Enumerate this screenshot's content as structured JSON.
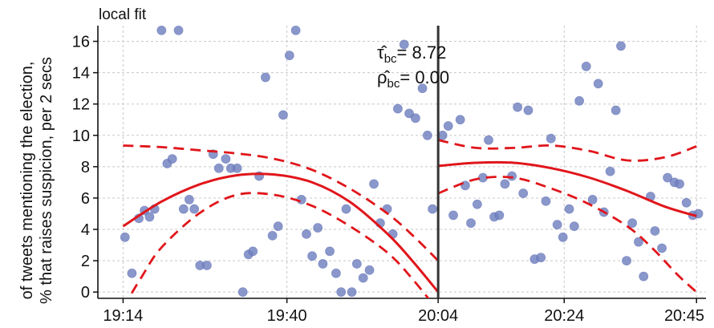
{
  "chart_data": {
    "type": "scatter",
    "title": "local fit",
    "ylabel_line1": "of tweets mentioning the election,",
    "ylabel_line2": "% that raises suspicion, per 2 secs",
    "xlabel": "",
    "x_tick_labels": [
      "19:14",
      "19:40",
      "20:04",
      "20:24",
      "20:45"
    ],
    "x_tick_values": [
      1154,
      1180,
      1204,
      1224,
      1245
    ],
    "y_ticks": [
      0,
      2,
      4,
      6,
      8,
      10,
      12,
      14,
      16
    ],
    "xlim": [
      1150,
      1246.5
    ],
    "ylim": [
      -0.4,
      17.0
    ],
    "grid": true,
    "cutoff": 1204,
    "annotations": {
      "tau_symbol": "τ̂",
      "tau_sub": "bc",
      "tau_value": "= 8.72",
      "rho_symbol": "ρ̂",
      "rho_sub": "bc",
      "rho_value": "= 0.00"
    },
    "colors": {
      "points": "#7080c0",
      "fit": "#e0161b",
      "cutoff": "#333333",
      "grid": "#c8c8c8"
    },
    "series": [
      {
        "kind": "points",
        "x": [
          1154.3,
          1155.4,
          1156.5,
          1157.4,
          1158.2,
          1159.0,
          1160.1,
          1161.0,
          1161.8,
          1162.8,
          1163.6,
          1164.5,
          1165.3,
          1166.2,
          1167.3,
          1168.3,
          1169.2,
          1170.3,
          1171.1,
          1172.1,
          1173.0,
          1173.9,
          1174.6,
          1175.6,
          1176.6,
          1177.7,
          1178.6,
          1179.4,
          1180.4,
          1181.4,
          1182.3,
          1183.1,
          1184.0,
          1184.9,
          1185.7,
          1186.8,
          1187.8,
          1188.6,
          1189.4,
          1190.3,
          1191.1,
          1192.1,
          1193.1,
          1193.8,
          1194.8,
          1195.9,
          1196.8,
          1197.6,
          1198.6,
          1199.4,
          1200.4,
          1201.5,
          1202.3,
          1203.1,
          1204.7,
          1205.6,
          1206.4,
          1207.5,
          1208.3,
          1209.2,
          1210.2,
          1211.1,
          1212.0,
          1212.9,
          1213.7,
          1214.6,
          1215.7,
          1216.6,
          1217.5,
          1218.3,
          1219.3,
          1220.3,
          1221.1,
          1221.9,
          1222.9,
          1223.8,
          1224.8,
          1225.6,
          1226.4,
          1227.5,
          1228.5,
          1229.4,
          1230.3,
          1231.3,
          1232.2,
          1233.0,
          1233.9,
          1234.8,
          1235.8,
          1236.6,
          1237.7,
          1238.4,
          1239.5,
          1240.4,
          1241.5,
          1242.3,
          1243.4,
          1244.4,
          1245.3
        ],
        "y": [
          3.5,
          1.2,
          4.7,
          5.2,
          4.8,
          5.3,
          16.7,
          8.2,
          8.5,
          16.7,
          5.3,
          5.9,
          5.3,
          1.7,
          1.7,
          8.8,
          7.9,
          8.5,
          7.9,
          7.9,
          0.0,
          2.4,
          2.6,
          7.4,
          13.7,
          3.6,
          4.2,
          11.3,
          15.1,
          16.7,
          5.9,
          3.7,
          2.3,
          4.1,
          1.8,
          2.6,
          1.2,
          0.0,
          5.3,
          0.0,
          1.8,
          0.9,
          1.4,
          6.9,
          4.4,
          5.3,
          3.7,
          11.7,
          15.8,
          11.4,
          11.1,
          13.0,
          10.0,
          5.3,
          10.0,
          10.6,
          4.9,
          11.0,
          6.8,
          4.4,
          5.6,
          7.3,
          9.7,
          4.8,
          4.9,
          6.9,
          7.4,
          11.8,
          6.3,
          11.6,
          2.1,
          2.2,
          5.8,
          9.8,
          4.3,
          3.5,
          5.3,
          4.2,
          12.2,
          14.4,
          5.9,
          13.3,
          5.1,
          7.7,
          11.6,
          15.7,
          2.0,
          4.4,
          3.2,
          1.0,
          6.1,
          3.9,
          2.8,
          7.3,
          7.0,
          6.9,
          5.7,
          4.9,
          5.0
        ]
      },
      {
        "kind": "fit-left",
        "x": [
          1154,
          1160,
          1166,
          1172,
          1178,
          1184,
          1190,
          1196,
          1200,
          1204
        ],
        "y": [
          4.2,
          5.75,
          6.85,
          7.45,
          7.5,
          7.0,
          5.75,
          3.7,
          1.95,
          0.0
        ]
      },
      {
        "kind": "ci-left-upper",
        "x": [
          1154,
          1160,
          1166,
          1172,
          1178,
          1184,
          1190,
          1196,
          1200,
          1204
        ],
        "y": [
          9.35,
          9.25,
          9.05,
          8.85,
          8.5,
          7.8,
          6.6,
          5.0,
          3.6,
          2.0
        ]
      },
      {
        "kind": "ci-left-lower",
        "x": [
          1154,
          1157,
          1160,
          1166,
          1172,
          1178,
          1184,
          1190,
          1196,
          1200,
          1204
        ],
        "y": [
          -1.0,
          1.0,
          2.8,
          5.0,
          6.2,
          6.2,
          5.5,
          4.2,
          2.5,
          0.8,
          -1.2
        ]
      },
      {
        "kind": "fit-right",
        "x": [
          1204,
          1210,
          1216,
          1222,
          1228,
          1234,
          1240,
          1245
        ],
        "y": [
          8.05,
          8.25,
          8.25,
          7.9,
          7.3,
          6.45,
          5.45,
          4.85
        ]
      },
      {
        "kind": "ci-right-upper",
        "x": [
          1204,
          1210,
          1216,
          1222,
          1228,
          1234,
          1240,
          1245
        ],
        "y": [
          9.7,
          9.2,
          9.2,
          9.35,
          9.0,
          8.4,
          8.6,
          9.3
        ]
      },
      {
        "kind": "ci-right-lower",
        "x": [
          1204,
          1210,
          1216,
          1222,
          1228,
          1234,
          1238,
          1242,
          1245
        ],
        "y": [
          6.3,
          7.2,
          7.3,
          6.6,
          5.6,
          4.2,
          2.8,
          1.1,
          0.0
        ]
      }
    ]
  }
}
